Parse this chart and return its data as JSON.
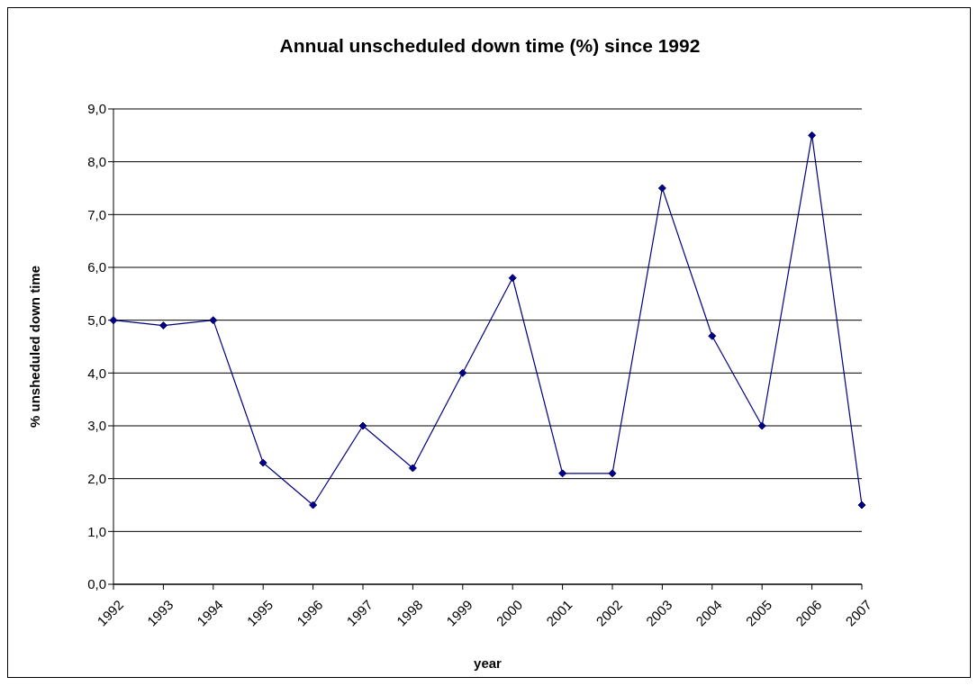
{
  "chart_data": {
    "type": "line",
    "title": "Annual unscheduled down time (%) since 1992",
    "xlabel": "year",
    "ylabel": "% unsheduled down time",
    "categories": [
      "1992",
      "1993",
      "1994",
      "1995",
      "1996",
      "1997",
      "1998",
      "1999",
      "2000",
      "2001",
      "2002",
      "2003",
      "2004",
      "2005",
      "2006",
      "2007"
    ],
    "series": [
      {
        "color": "#000080",
        "values": [
          5.0,
          4.9,
          5.0,
          2.3,
          1.5,
          3.0,
          2.2,
          4.0,
          5.8,
          2.1,
          2.1,
          7.5,
          4.7,
          3.0,
          8.5,
          1.5
        ]
      }
    ],
    "ylim": [
      0,
      9
    ],
    "yticks": [
      {
        "value": 0,
        "label": "0,0"
      },
      {
        "value": 1,
        "label": "1,0"
      },
      {
        "value": 2,
        "label": "2,0"
      },
      {
        "value": 3,
        "label": "3,0"
      },
      {
        "value": 4,
        "label": "4,0"
      },
      {
        "value": 5,
        "label": "5,0"
      },
      {
        "value": 6,
        "label": "6,0"
      },
      {
        "value": 7,
        "label": "7,0"
      },
      {
        "value": 8,
        "label": "8,0"
      },
      {
        "value": 9,
        "label": "9,0"
      }
    ],
    "grid": "y",
    "marker": "diamond",
    "line_style": "solid"
  }
}
